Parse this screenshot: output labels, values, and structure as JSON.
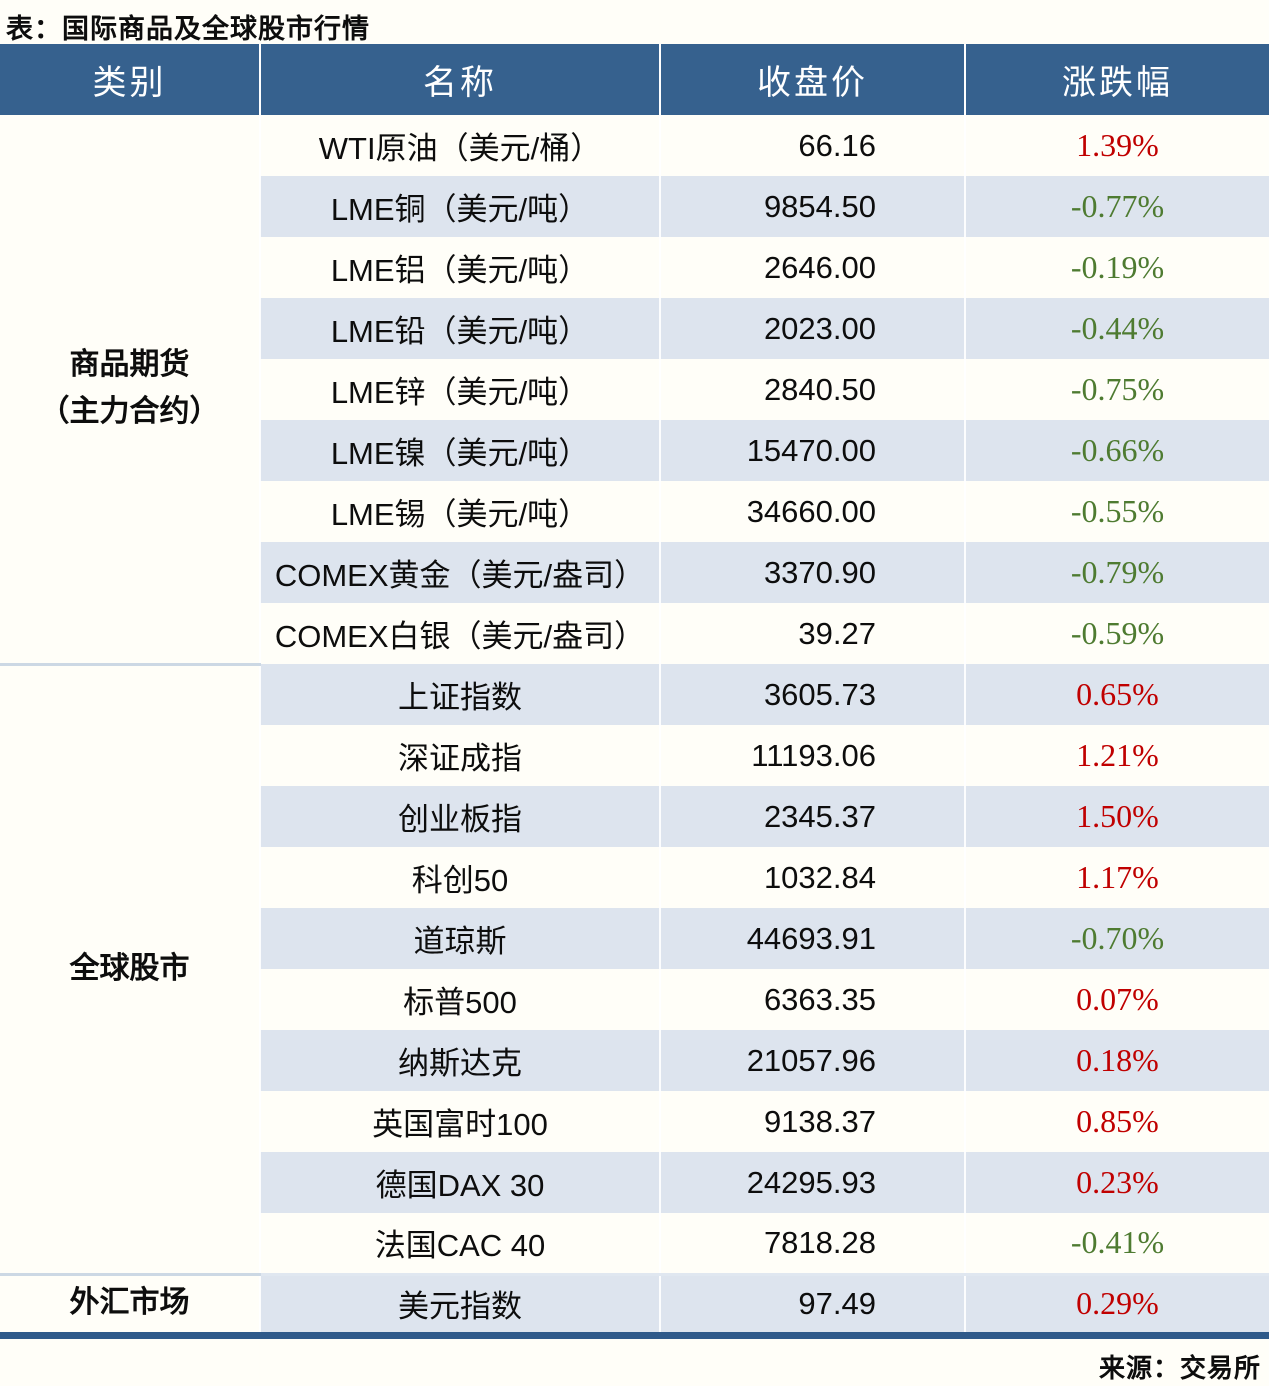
{
  "page": {
    "title": "表：国际商品及全球股市行情",
    "source": "来源：交易所"
  },
  "colors": {
    "header_bg": "#36618e",
    "row_stripe": "#dde4ee",
    "up_red": "#c00000",
    "down_green": "#4e7b31",
    "bottom_border": "#2f5a8a"
  },
  "table": {
    "headers": [
      "类别",
      "名称",
      "收盘价",
      "涨跌幅"
    ],
    "sections": [
      {
        "category": "商品期货（主力合约）",
        "category_lines": [
          "商品期货",
          "（主力合约）"
        ],
        "rows": [
          {
            "name": "WTI原油（美元/桶）",
            "close": "66.16",
            "change": "1.39%",
            "dir": "up"
          },
          {
            "name": "LME铜（美元/吨）",
            "close": "9854.50",
            "change": "-0.77%",
            "dir": "down"
          },
          {
            "name": "LME铝（美元/吨）",
            "close": "2646.00",
            "change": "-0.19%",
            "dir": "down"
          },
          {
            "name": "LME铅（美元/吨）",
            "close": "2023.00",
            "change": "-0.44%",
            "dir": "down"
          },
          {
            "name": "LME锌（美元/吨）",
            "close": "2840.50",
            "change": "-0.75%",
            "dir": "down"
          },
          {
            "name": "LME镍（美元/吨）",
            "close": "15470.00",
            "change": "-0.66%",
            "dir": "down"
          },
          {
            "name": "LME锡（美元/吨）",
            "close": "34660.00",
            "change": "-0.55%",
            "dir": "down"
          },
          {
            "name": "COMEX黄金（美元/盎司）",
            "close": "3370.90",
            "change": "-0.79%",
            "dir": "down"
          },
          {
            "name": "COMEX白银（美元/盎司）",
            "close": "39.27",
            "change": "-0.59%",
            "dir": "down"
          }
        ]
      },
      {
        "category": "全球股市",
        "category_lines": [
          "全球股市"
        ],
        "rows": [
          {
            "name": "上证指数",
            "close": "3605.73",
            "change": "0.65%",
            "dir": "up"
          },
          {
            "name": "深证成指",
            "close": "11193.06",
            "change": "1.21%",
            "dir": "up"
          },
          {
            "name": "创业板指",
            "close": "2345.37",
            "change": "1.50%",
            "dir": "up"
          },
          {
            "name": "科创50",
            "close": "1032.84",
            "change": "1.17%",
            "dir": "up"
          },
          {
            "name": "道琼斯",
            "close": "44693.91",
            "change": "-0.70%",
            "dir": "down"
          },
          {
            "name": "标普500",
            "close": "6363.35",
            "change": "0.07%",
            "dir": "up"
          },
          {
            "name": "纳斯达克",
            "close": "21057.96",
            "change": "0.18%",
            "dir": "up"
          },
          {
            "name": "英国富时100",
            "close": "9138.37",
            "change": "0.85%",
            "dir": "up"
          },
          {
            "name": "德国DAX 30",
            "close": "24295.93",
            "change": "0.23%",
            "dir": "up"
          },
          {
            "name": "法国CAC 40",
            "close": "7818.28",
            "change": "-0.41%",
            "dir": "down"
          }
        ]
      },
      {
        "category": "外汇市场",
        "category_lines": [
          "外汇市场"
        ],
        "rows": [
          {
            "name": "美元指数",
            "close": "97.49",
            "change": "0.29%",
            "dir": "up"
          }
        ]
      }
    ]
  },
  "chart_data": {
    "type": "table",
    "title": "表：国际商品及全球股市行情",
    "columns": [
      "类别",
      "名称",
      "收盘价",
      "涨跌幅"
    ],
    "rows": [
      [
        "商品期货（主力合约）",
        "WTI原油（美元/桶）",
        66.16,
        "1.39%"
      ],
      [
        "商品期货（主力合约）",
        "LME铜（美元/吨）",
        9854.5,
        "-0.77%"
      ],
      [
        "商品期货（主力合约）",
        "LME铝（美元/吨）",
        2646.0,
        "-0.19%"
      ],
      [
        "商品期货（主力合约）",
        "LME铅（美元/吨）",
        2023.0,
        "-0.44%"
      ],
      [
        "商品期货（主力合约）",
        "LME锌（美元/吨）",
        2840.5,
        "-0.75%"
      ],
      [
        "商品期货（主力合约）",
        "LME镍（美元/吨）",
        15470.0,
        "-0.66%"
      ],
      [
        "商品期货（主力合约）",
        "LME锡（美元/吨）",
        34660.0,
        "-0.55%"
      ],
      [
        "商品期货（主力合约）",
        "COMEX黄金（美元/盎司）",
        3370.9,
        "-0.79%"
      ],
      [
        "商品期货（主力合约）",
        "COMEX白银（美元/盎司）",
        39.27,
        "-0.59%"
      ],
      [
        "全球股市",
        "上证指数",
        3605.73,
        "0.65%"
      ],
      [
        "全球股市",
        "深证成指",
        11193.06,
        "1.21%"
      ],
      [
        "全球股市",
        "创业板指",
        2345.37,
        "1.50%"
      ],
      [
        "全球股市",
        "科创50",
        1032.84,
        "1.17%"
      ],
      [
        "全球股市",
        "道琼斯",
        44693.91,
        "-0.70%"
      ],
      [
        "全球股市",
        "标普500",
        6363.35,
        "0.07%"
      ],
      [
        "全球股市",
        "纳斯达克",
        21057.96,
        "0.18%"
      ],
      [
        "全球股市",
        "英国富时100",
        9138.37,
        "0.85%"
      ],
      [
        "全球股市",
        "德国DAX 30",
        24295.93,
        "0.23%"
      ],
      [
        "全球股市",
        "法国CAC 40",
        7818.28,
        "-0.41%"
      ],
      [
        "外汇市场",
        "美元指数",
        97.49,
        "0.29%"
      ]
    ],
    "legend": "red = 上涨 (up), green = 下跌 (down)"
  }
}
